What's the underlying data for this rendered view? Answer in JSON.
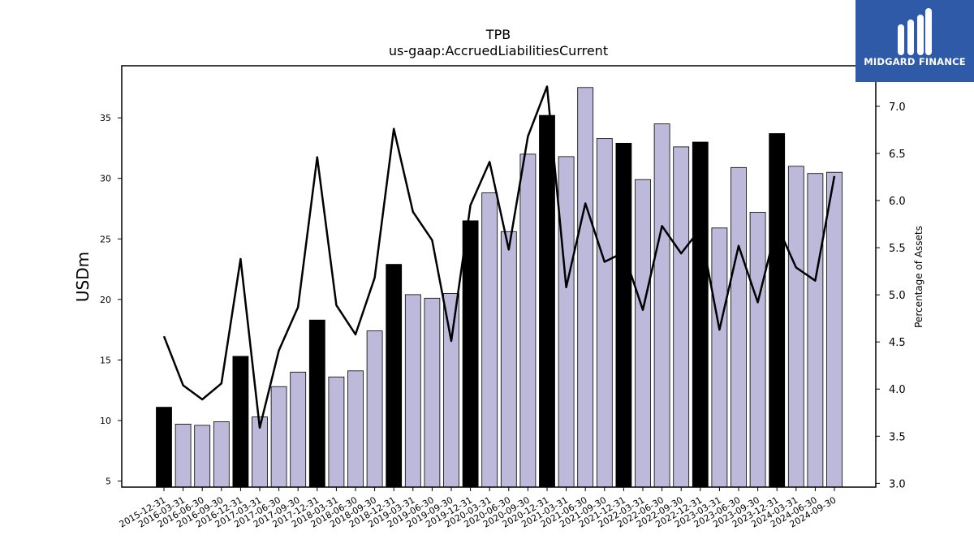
{
  "chart_data": {
    "type": "bar",
    "title": "TPB",
    "subtitle": "us-gaap:AccruedLiabilitiesCurrent",
    "ylabel": "USDm",
    "y2label": "Percentage of Assets",
    "ylim": [
      4.5,
      39.3
    ],
    "y2lim": [
      2.96,
      7.43
    ],
    "yticks": [
      5,
      10,
      15,
      20,
      25,
      30,
      35
    ],
    "y2ticks": [
      "3.0",
      "3.5",
      "4.0",
      "4.5",
      "5.0",
      "5.5",
      "6.0",
      "6.5",
      "7.0"
    ],
    "categories": [
      "2015-12-31",
      "2016-03-31",
      "2016-06-30",
      "2016-09-30",
      "2016-12-31",
      "2017-03-31",
      "2017-06-30",
      "2017-09-30",
      "2017-12-31",
      "2018-03-31",
      "2018-06-30",
      "2018-09-30",
      "2018-12-31",
      "2019-03-31",
      "2019-06-30",
      "2019-09-30",
      "2019-12-31",
      "2020-03-31",
      "2020-06-30",
      "2020-09-30",
      "2020-12-31",
      "2021-03-31",
      "2021-06-30",
      "2021-09-30",
      "2021-12-31",
      "2022-03-31",
      "2022-06-30",
      "2022-09-30",
      "2022-12-31",
      "2023-03-31",
      "2023-06-30",
      "2023-09-30",
      "2023-12-31",
      "2024-03-31",
      "2024-06-30",
      "2024-09-30"
    ],
    "series": [
      {
        "values": [
          11.1,
          9.7,
          9.6,
          9.9,
          15.3,
          10.3,
          12.8,
          14.0,
          18.3,
          13.6,
          14.1,
          17.4,
          22.9,
          20.4,
          20.1,
          20.5,
          26.5,
          28.8,
          25.6,
          32.0,
          35.2,
          31.8,
          37.5,
          33.3,
          32.9,
          29.9,
          34.5,
          32.6,
          33.0,
          25.9,
          30.9,
          27.2,
          33.7,
          31.0,
          30.4,
          30.5
        ],
        "highlight": [
          true,
          false,
          false,
          false,
          true,
          false,
          false,
          false,
          true,
          false,
          false,
          false,
          true,
          false,
          false,
          false,
          true,
          false,
          false,
          false,
          true,
          false,
          false,
          false,
          true,
          false,
          false,
          false,
          true,
          false,
          false,
          false,
          true,
          false,
          false,
          false
        ],
        "color": "#bcb9db",
        "highlight_color": "#000000"
      },
      {
        "axis": "right",
        "type": "line",
        "color": "#000000",
        "values": [
          4.56,
          4.04,
          3.89,
          4.06,
          5.38,
          3.59,
          4.41,
          4.87,
          6.46,
          4.89,
          4.58,
          5.18,
          6.76,
          5.88,
          5.58,
          4.51,
          5.95,
          6.41,
          5.48,
          6.68,
          7.21,
          5.08,
          5.97,
          5.35,
          5.45,
          4.84,
          5.73,
          5.44,
          5.7,
          4.63,
          5.52,
          4.92,
          5.74,
          5.29,
          5.15,
          6.26
        ]
      }
    ]
  },
  "logo": {
    "text": "MIDGARD FINANCE",
    "bg": "#2f5aa8"
  }
}
